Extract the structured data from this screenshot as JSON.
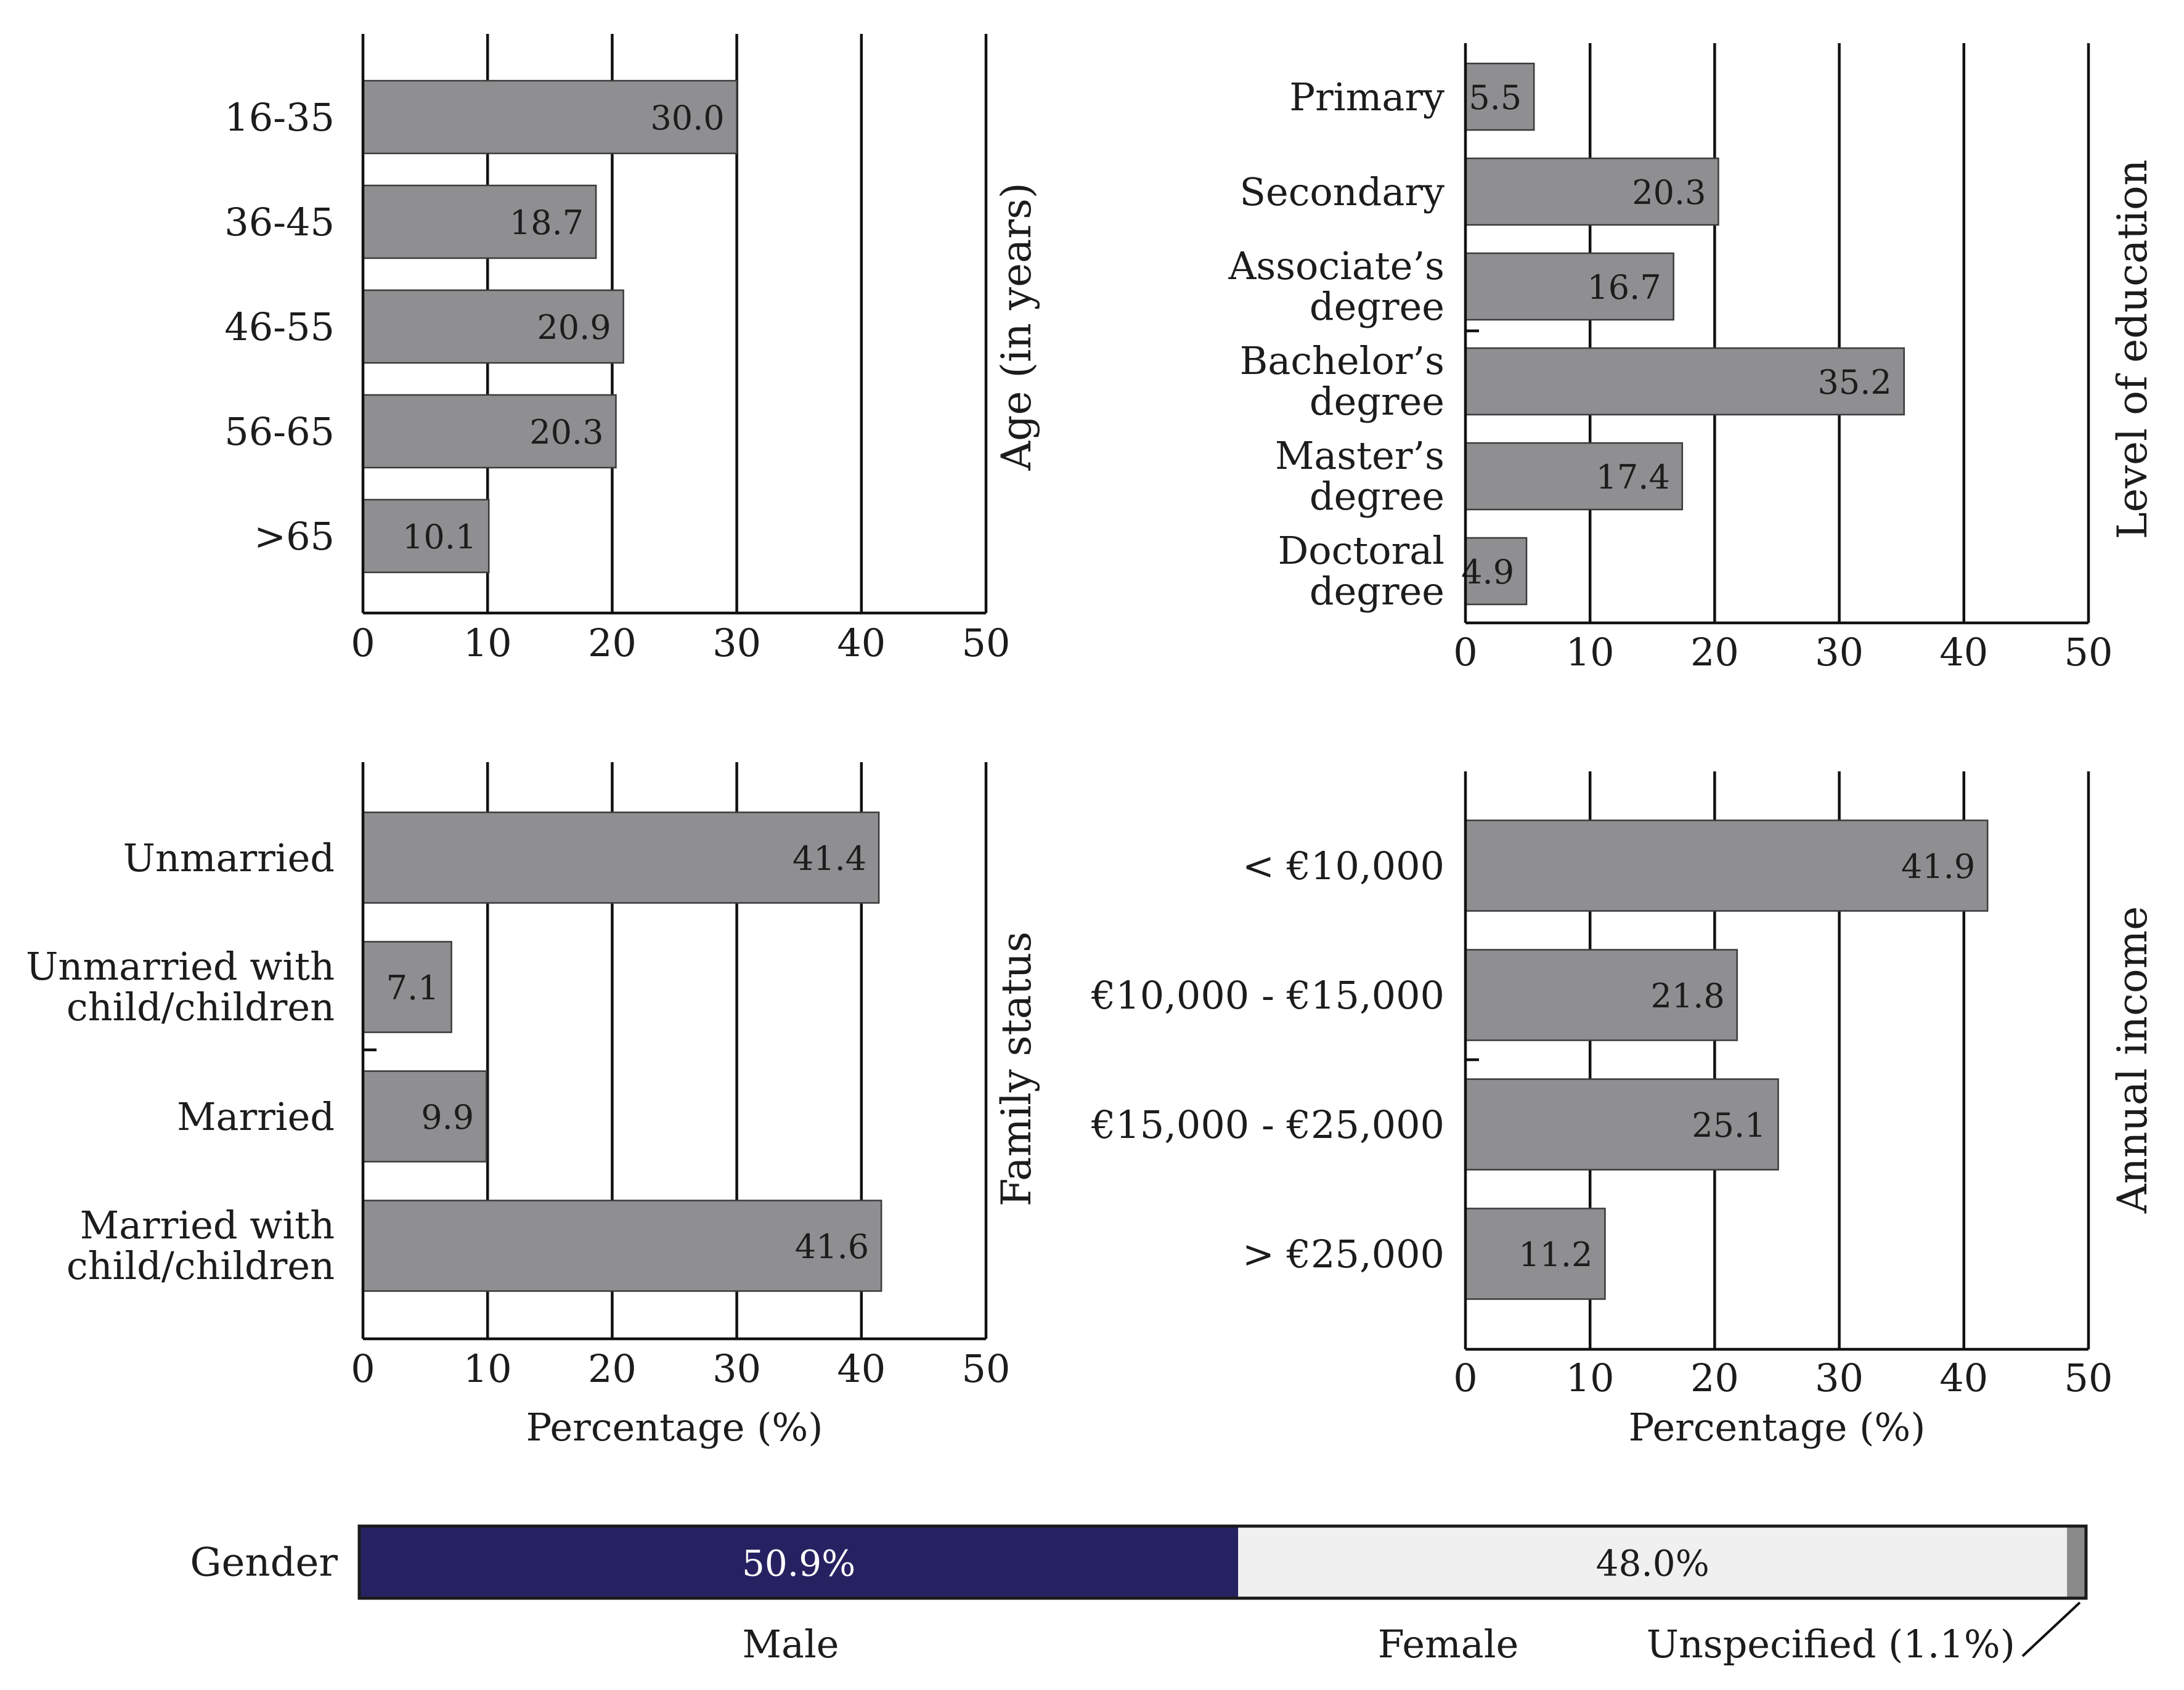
{
  "chart_data": [
    {
      "type": "bar",
      "orientation": "horizontal",
      "ylabel": "Age (in years)",
      "xlabel": "",
      "categories": [
        [
          "16-35"
        ],
        [
          "36-45"
        ],
        [
          "46-55"
        ],
        [
          "56-65"
        ],
        [
          ">65"
        ]
      ],
      "values": [
        30.0,
        18.7,
        20.9,
        20.3,
        10.1
      ],
      "value_labels": [
        "30.0",
        "18.7",
        "20.9",
        "20.3",
        "10.1"
      ],
      "xticks": [
        "0",
        "10",
        "20",
        "30",
        "40",
        "50"
      ],
      "xlim": [
        0,
        50
      ],
      "grid": true
    },
    {
      "type": "bar",
      "orientation": "horizontal",
      "ylabel": "Level of education",
      "xlabel": "",
      "categories": [
        [
          "Primary"
        ],
        [
          "Secondary"
        ],
        [
          "Associate’s",
          "degree"
        ],
        [
          "Bachelor’s",
          "degree"
        ],
        [
          "Master’s",
          "degree"
        ],
        [
          "Doctoral",
          "degree"
        ]
      ],
      "values": [
        5.5,
        20.3,
        16.7,
        35.2,
        17.4,
        4.9
      ],
      "value_labels": [
        "5.5",
        "20.3",
        "16.7",
        "35.2",
        "17.4",
        "4.9"
      ],
      "xticks": [
        "0",
        "10",
        "20",
        "30",
        "40",
        "50"
      ],
      "xlim": [
        0,
        50
      ],
      "grid": true
    },
    {
      "type": "bar",
      "orientation": "horizontal",
      "ylabel": "Family status",
      "xlabel": "Percentage (%)",
      "categories": [
        [
          "Unmarried"
        ],
        [
          "Unmarried with",
          "child/children"
        ],
        [
          "Married"
        ],
        [
          "Married with",
          "child/children"
        ]
      ],
      "values": [
        41.4,
        7.1,
        9.9,
        41.6
      ],
      "value_labels": [
        "41.4",
        "7.1",
        "9.9",
        "41.6"
      ],
      "xticks": [
        "0",
        "10",
        "20",
        "30",
        "40",
        "50"
      ],
      "xlim": [
        0,
        50
      ],
      "grid": true
    },
    {
      "type": "bar",
      "orientation": "horizontal",
      "ylabel": "Annual income",
      "xlabel": "Percentage (%)",
      "categories": [
        [
          "< €10,000"
        ],
        [
          "€10,000 - €15,000"
        ],
        [
          "€15,000 - €25,000"
        ],
        [
          "> €25,000"
        ]
      ],
      "values": [
        41.9,
        21.8,
        25.1,
        11.2
      ],
      "value_labels": [
        "41.9",
        "21.8",
        "25.1",
        "11.2"
      ],
      "xticks": [
        "0",
        "10",
        "20",
        "30",
        "40",
        "50"
      ],
      "xlim": [
        0,
        50
      ],
      "grid": true
    },
    {
      "type": "bar",
      "orientation": "stacked-horizontal",
      "label": "Gender",
      "segments": [
        {
          "name": "Male",
          "value": 50.9,
          "label": "50.9%",
          "color": "#262262"
        },
        {
          "name": "Female",
          "value": 48.0,
          "label": "48.0%",
          "color": "#f0f0f0"
        },
        {
          "name": "Unspecified (1.1%)",
          "value": 1.1,
          "label": "",
          "color": "#8a8a8a"
        }
      ]
    }
  ]
}
